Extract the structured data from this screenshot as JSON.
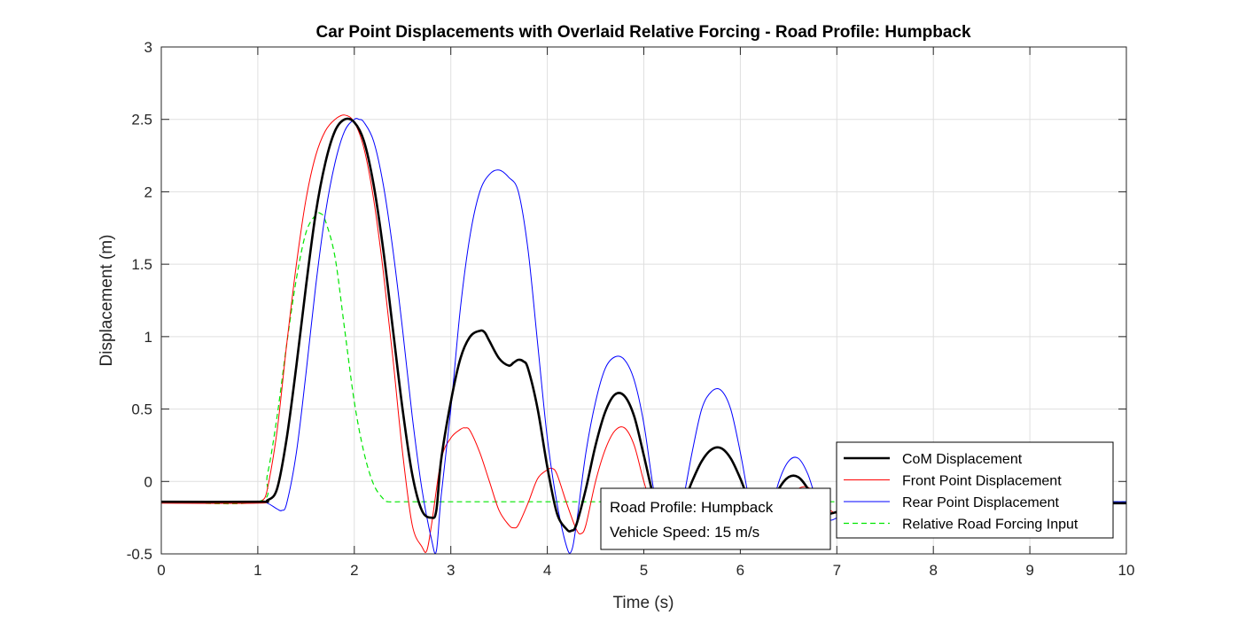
{
  "chart_data": {
    "type": "line",
    "title": "Car Point Displacements with Overlaid Relative Forcing - Road Profile: Humpback",
    "xlabel": "Time (s)",
    "ylabel": "Displacement (m)",
    "xlim": [
      0,
      10
    ],
    "ylim": [
      -0.5,
      3
    ],
    "xticks": [
      0,
      1,
      2,
      3,
      4,
      5,
      6,
      7,
      8,
      9,
      10
    ],
    "xtick_labels": [
      "0",
      "1",
      "2",
      "3",
      "4",
      "5",
      "6",
      "7",
      "8",
      "9",
      "10"
    ],
    "yticks": [
      -0.5,
      0,
      0.5,
      1,
      1.5,
      2,
      2.5,
      3
    ],
    "ytick_labels": [
      "-0.5",
      "0",
      "0.5",
      "1",
      "1.5",
      "2",
      "2.5",
      "3"
    ],
    "grid": true,
    "legend_position": "bottom-right",
    "annotation": {
      "lines": [
        "Road Profile: Humpback",
        "Vehicle Speed: 15 m/s"
      ]
    },
    "series": [
      {
        "name": "CoM Displacement",
        "color": "#000000",
        "style": "solid-thick",
        "x": [
          0,
          1.0,
          1.1,
          1.2,
          1.3,
          1.4,
          1.5,
          1.6,
          1.7,
          1.8,
          1.9,
          2.0,
          2.1,
          2.2,
          2.3,
          2.4,
          2.5,
          2.6,
          2.7,
          2.8,
          2.85,
          2.9,
          3.0,
          3.1,
          3.2,
          3.3,
          3.35,
          3.4,
          3.5,
          3.6,
          3.65,
          3.7,
          3.75,
          3.8,
          3.9,
          4.0,
          4.1,
          4.2,
          4.25,
          4.3,
          4.4,
          4.5,
          4.6,
          4.7,
          4.8,
          4.9,
          5.0,
          5.1,
          5.2,
          5.3,
          5.4,
          5.5,
          5.6,
          5.7,
          5.8,
          5.9,
          6.0,
          6.1,
          6.2,
          6.25,
          6.3,
          6.4,
          6.5,
          6.6,
          6.7,
          6.8,
          6.9,
          7.0,
          7.2,
          7.5,
          8.0,
          9.0,
          10.0
        ],
        "y": [
          -0.14,
          -0.14,
          -0.13,
          -0.05,
          0.3,
          0.8,
          1.35,
          1.85,
          2.2,
          2.42,
          2.5,
          2.48,
          2.35,
          2.05,
          1.6,
          1.05,
          0.5,
          0.05,
          -0.2,
          -0.25,
          -0.2,
          0.15,
          0.55,
          0.85,
          1.0,
          1.04,
          1.03,
          0.97,
          0.85,
          0.8,
          0.82,
          0.84,
          0.83,
          0.78,
          0.5,
          0.1,
          -0.22,
          -0.33,
          -0.34,
          -0.3,
          -0.05,
          0.25,
          0.48,
          0.6,
          0.59,
          0.45,
          0.18,
          -0.1,
          -0.25,
          -0.28,
          -0.17,
          0.0,
          0.14,
          0.22,
          0.23,
          0.16,
          0.02,
          -0.15,
          -0.25,
          -0.25,
          -0.2,
          -0.05,
          0.03,
          0.03,
          -0.05,
          -0.17,
          -0.22,
          -0.21,
          -0.16,
          -0.15,
          -0.15,
          -0.15,
          -0.15
        ]
      },
      {
        "name": "Front Point Displacement",
        "color": "#ff0000",
        "style": "solid",
        "x": [
          0,
          1.0,
          1.05,
          1.1,
          1.2,
          1.3,
          1.4,
          1.5,
          1.6,
          1.7,
          1.8,
          1.9,
          2.0,
          2.1,
          2.2,
          2.3,
          2.4,
          2.5,
          2.6,
          2.7,
          2.75,
          2.8,
          2.9,
          3.0,
          3.1,
          3.15,
          3.2,
          3.3,
          3.4,
          3.5,
          3.6,
          3.65,
          3.7,
          3.8,
          3.9,
          4.0,
          4.05,
          4.1,
          4.2,
          4.3,
          4.35,
          4.4,
          4.5,
          4.6,
          4.7,
          4.8,
          4.9,
          5.0,
          5.1,
          5.2,
          5.3,
          5.5,
          6.0,
          6.2,
          6.3,
          6.4,
          6.5,
          6.6,
          6.7,
          6.8,
          6.9,
          7.0,
          7.1,
          7.5,
          8.0,
          9.0,
          10.0
        ],
        "y": [
          -0.15,
          -0.15,
          -0.13,
          -0.05,
          0.35,
          0.95,
          1.5,
          1.95,
          2.25,
          2.42,
          2.5,
          2.53,
          2.48,
          2.3,
          1.95,
          1.45,
          0.85,
          0.2,
          -0.3,
          -0.45,
          -0.48,
          -0.3,
          0.15,
          0.3,
          0.36,
          0.37,
          0.35,
          0.2,
          0.0,
          -0.2,
          -0.3,
          -0.32,
          -0.3,
          -0.15,
          0.02,
          0.08,
          0.09,
          0.05,
          -0.15,
          -0.33,
          -0.36,
          -0.3,
          0.0,
          0.22,
          0.35,
          0.37,
          0.25,
          0.0,
          -0.2,
          -0.25,
          -0.16,
          -0.13,
          -0.13,
          -0.15,
          -0.2,
          -0.23,
          -0.12,
          -0.05,
          -0.04,
          -0.1,
          -0.18,
          -0.22,
          -0.18,
          -0.15,
          -0.15,
          -0.15,
          -0.15
        ]
      },
      {
        "name": "Rear Point Displacement",
        "color": "#0000ff",
        "style": "solid",
        "x": [
          0,
          1.0,
          1.1,
          1.2,
          1.25,
          1.3,
          1.4,
          1.5,
          1.6,
          1.7,
          1.8,
          1.9,
          2.0,
          2.05,
          2.1,
          2.2,
          2.3,
          2.4,
          2.5,
          2.6,
          2.7,
          2.8,
          2.85,
          2.9,
          3.0,
          3.1,
          3.2,
          3.3,
          3.4,
          3.5,
          3.6,
          3.7,
          3.8,
          3.9,
          4.0,
          4.1,
          4.2,
          4.25,
          4.3,
          4.4,
          4.5,
          4.6,
          4.7,
          4.8,
          4.9,
          5.0,
          5.1,
          5.2,
          5.3,
          5.4,
          5.5,
          5.6,
          5.7,
          5.8,
          5.9,
          6.0,
          6.1,
          6.2,
          6.25,
          6.3,
          6.4,
          6.5,
          6.6,
          6.7,
          6.8,
          6.9,
          7.0,
          7.1,
          7.5,
          8.0,
          9.0,
          10.0
        ],
        "y": [
          -0.14,
          -0.14,
          -0.15,
          -0.19,
          -0.2,
          -0.15,
          0.2,
          0.75,
          1.35,
          1.85,
          2.2,
          2.42,
          2.5,
          2.5,
          2.48,
          2.35,
          2.05,
          1.6,
          1.05,
          0.45,
          -0.05,
          -0.4,
          -0.48,
          -0.1,
          0.5,
          1.2,
          1.7,
          2.0,
          2.12,
          2.15,
          2.1,
          2.0,
          1.6,
          0.95,
          0.3,
          -0.15,
          -0.45,
          -0.48,
          -0.3,
          0.2,
          0.55,
          0.78,
          0.86,
          0.84,
          0.7,
          0.4,
          -0.05,
          -0.35,
          -0.4,
          -0.15,
          0.2,
          0.5,
          0.62,
          0.63,
          0.5,
          0.2,
          -0.15,
          -0.33,
          -0.35,
          -0.25,
          0.0,
          0.14,
          0.16,
          0.05,
          -0.15,
          -0.26,
          -0.25,
          -0.18,
          -0.14,
          -0.14,
          -0.14,
          -0.14
        ]
      },
      {
        "name": "Relative Road Forcing Input",
        "color": "#00e600",
        "style": "dashed",
        "x": [
          0,
          1.0,
          1.1,
          1.2,
          1.3,
          1.4,
          1.5,
          1.6,
          1.65,
          1.7,
          1.8,
          1.9,
          2.0,
          2.1,
          2.2,
          2.3,
          2.35,
          2.5,
          3.0,
          5.0,
          7.0,
          10.0
        ],
        "y": [
          -0.14,
          -0.14,
          0.05,
          0.45,
          0.95,
          1.4,
          1.72,
          1.84,
          1.85,
          1.8,
          1.55,
          1.05,
          0.55,
          0.2,
          -0.02,
          -0.12,
          -0.14,
          -0.14,
          -0.14,
          -0.14,
          -0.14,
          -0.14
        ]
      }
    ]
  }
}
